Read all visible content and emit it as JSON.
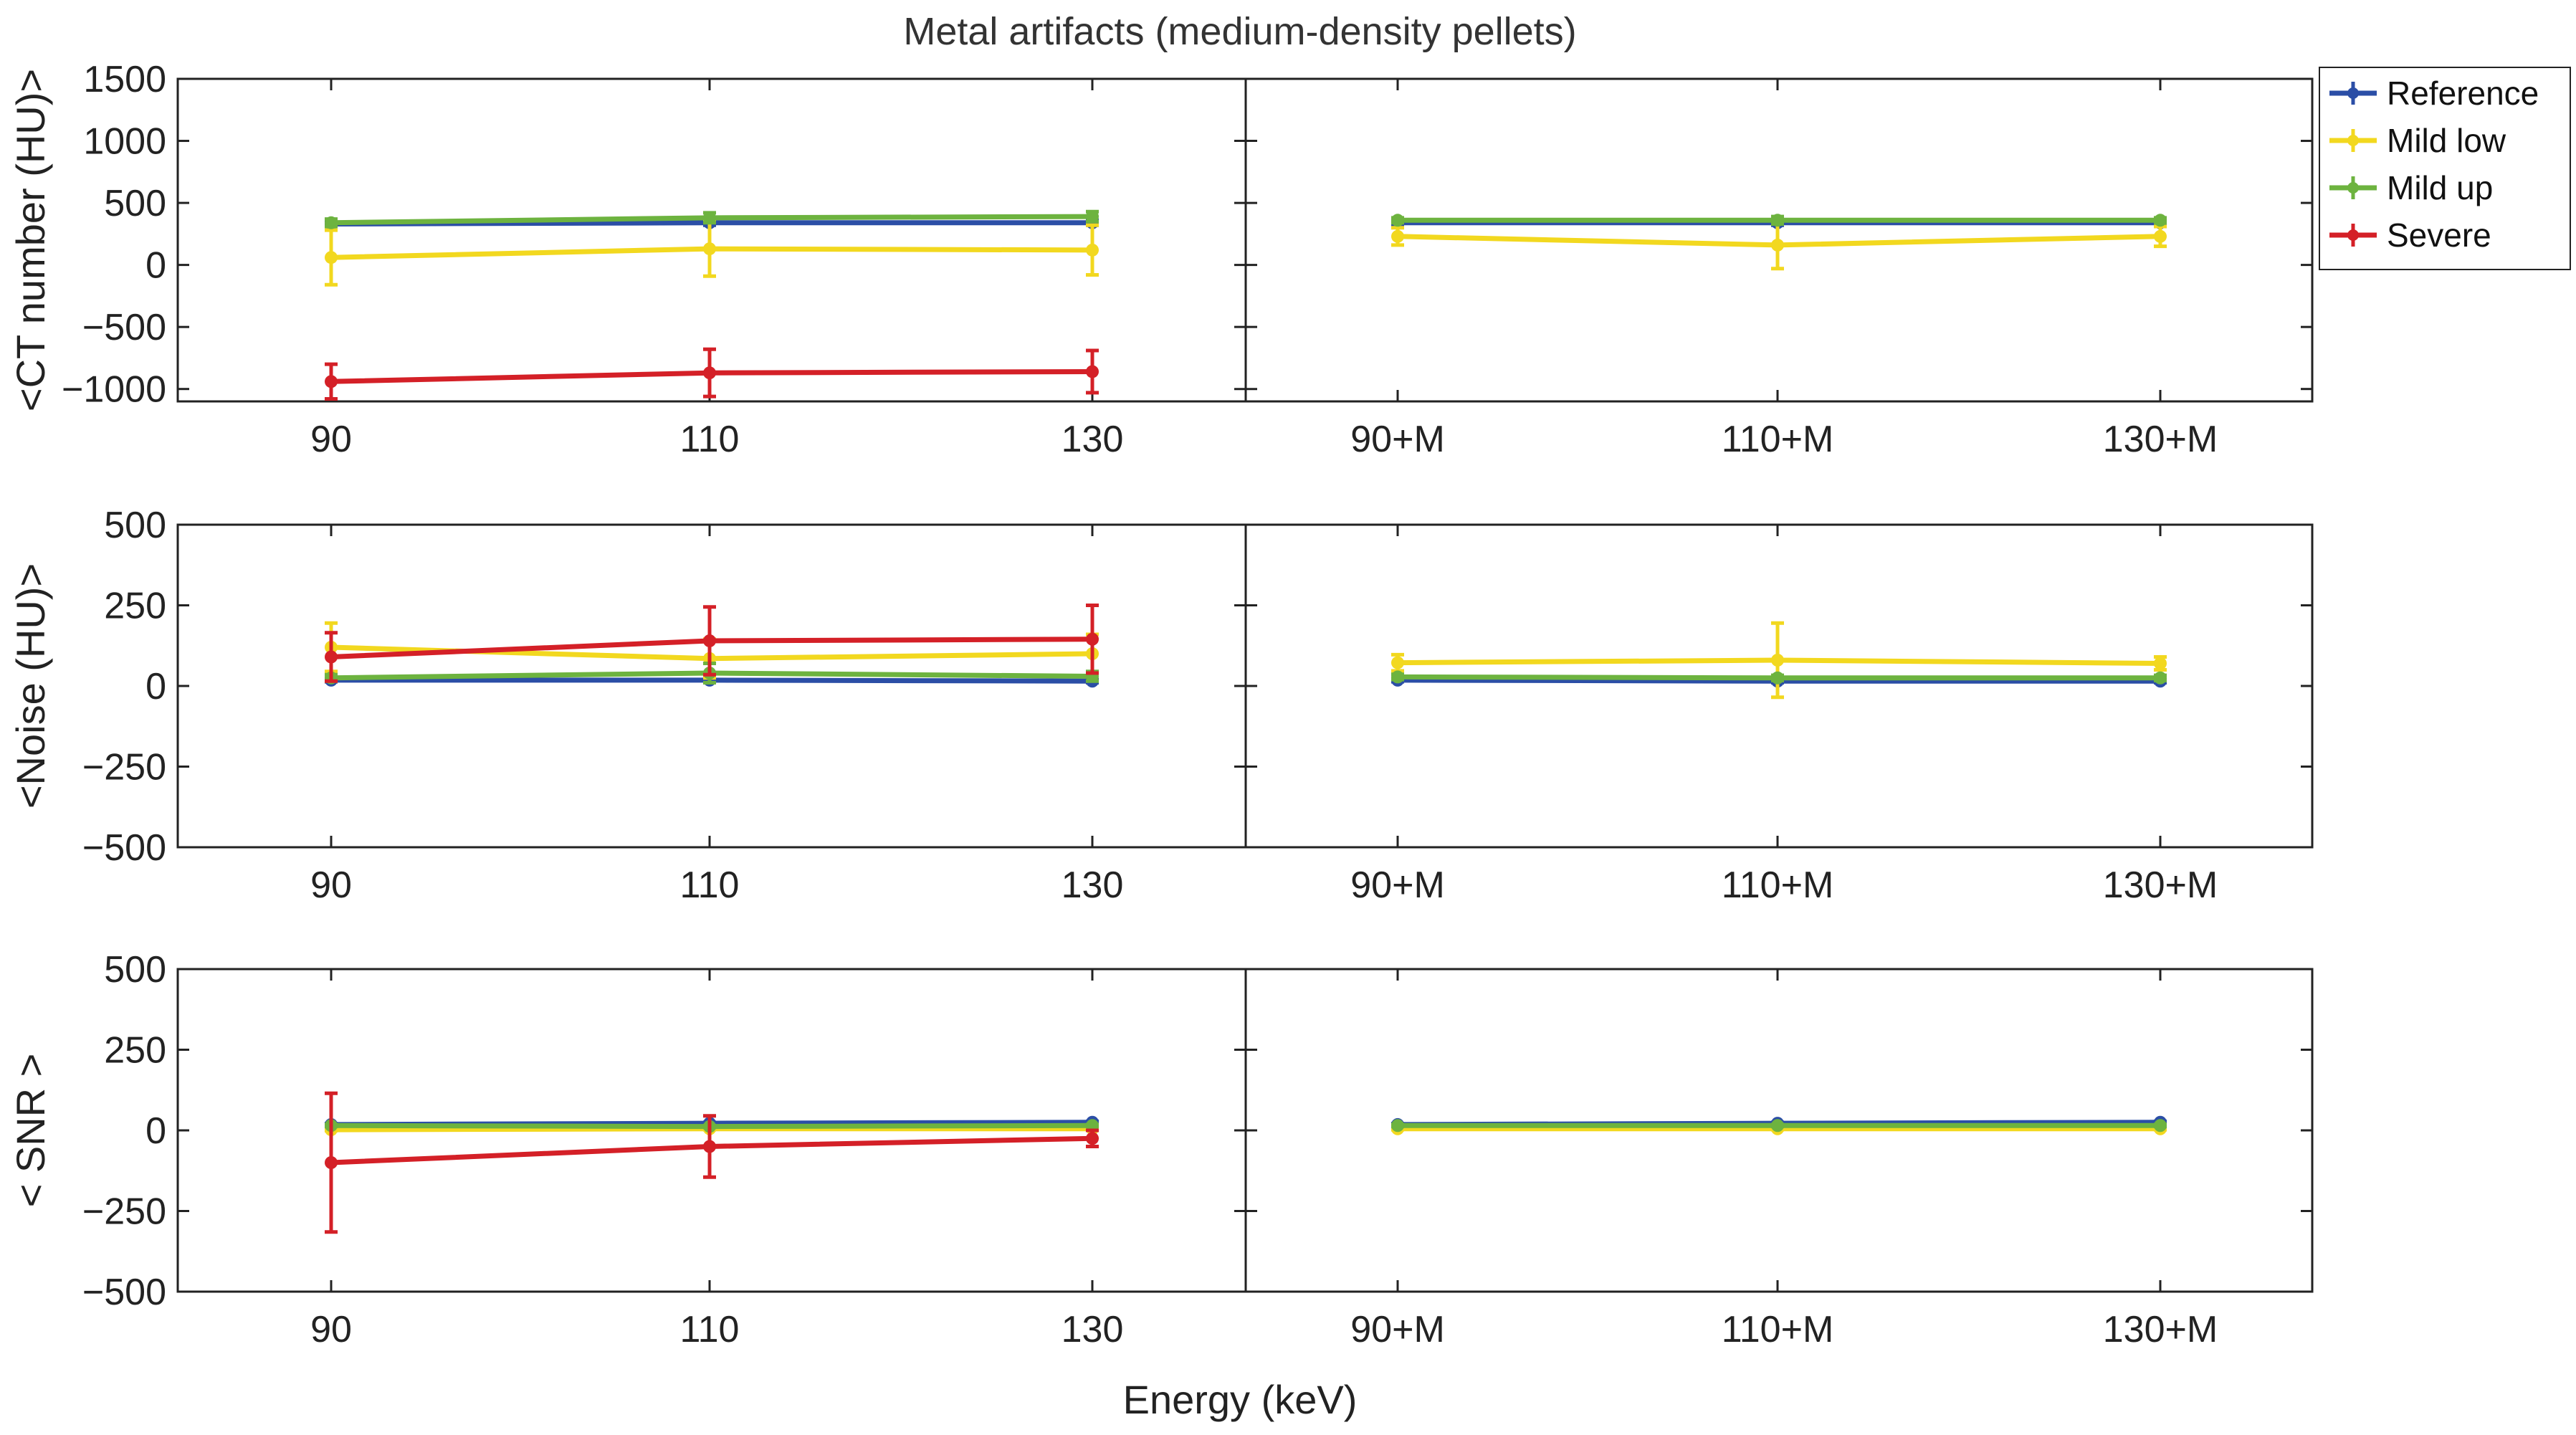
{
  "chart_data": {
    "type": "line",
    "title": "Metal artifacts (medium-density pellets)",
    "xlabel": "Energy (keV)",
    "legend_position": "right",
    "series_styles": [
      {
        "name": "Reference",
        "color": "#2b4ea6"
      },
      {
        "name": "Mild low",
        "color": "#f2d81f"
      },
      {
        "name": "Mild up",
        "color": "#6db33f"
      },
      {
        "name": "Severe",
        "color": "#d42027"
      }
    ],
    "panels": [
      {
        "ylabel": "<CT number (HU)>",
        "ylim": [
          -1100,
          1500
        ],
        "yticks": [
          1500,
          1000,
          500,
          0,
          -500,
          -1000
        ],
        "left": {
          "categories": [
            "90",
            "110",
            "130"
          ],
          "series": [
            {
              "name": "Reference",
              "values": [
                330,
                340,
                340
              ],
              "errors": [
                20,
                20,
                20
              ]
            },
            {
              "name": "Mild low",
              "values": [
                60,
                130,
                120
              ],
              "errors": [
                220,
                220,
                200
              ]
            },
            {
              "name": "Mild up",
              "values": [
                340,
                380,
                390
              ],
              "errors": [
                30,
                40,
                40
              ]
            },
            {
              "name": "Severe",
              "values": [
                -940,
                -870,
                -860
              ],
              "errors": [
                140,
                190,
                170
              ]
            }
          ]
        },
        "right": {
          "categories": [
            "90+M",
            "110+M",
            "130+M"
          ],
          "series": [
            {
              "name": "Reference",
              "values": [
                340,
                340,
                340
              ],
              "errors": [
                20,
                20,
                20
              ]
            },
            {
              "name": "Mild low",
              "values": [
                230,
                160,
                230
              ],
              "errors": [
                70,
                190,
                80
              ]
            },
            {
              "name": "Mild up",
              "values": [
                360,
                360,
                360
              ],
              "errors": [
                20,
                30,
                20
              ]
            }
          ]
        }
      },
      {
        "ylabel": "<Noise (HU)>",
        "ylim": [
          -500,
          500
        ],
        "yticks": [
          500,
          250,
          0,
          -250,
          -500
        ],
        "left": {
          "categories": [
            "90",
            "110",
            "130"
          ],
          "series": [
            {
              "name": "Reference",
              "values": [
                18,
                18,
                15
              ],
              "errors": [
                5,
                5,
                5
              ]
            },
            {
              "name": "Mild low",
              "values": [
                120,
                85,
                100
              ],
              "errors": [
                75,
                60,
                60
              ]
            },
            {
              "name": "Mild up",
              "values": [
                25,
                40,
                30
              ],
              "errors": [
                10,
                30,
                15
              ]
            },
            {
              "name": "Severe",
              "values": [
                90,
                140,
                145
              ],
              "errors": [
                75,
                105,
                105
              ]
            }
          ]
        },
        "right": {
          "categories": [
            "90+M",
            "110+M",
            "130+M"
          ],
          "series": [
            {
              "name": "Reference",
              "values": [
                18,
                15,
                15
              ],
              "errors": [
                5,
                5,
                5
              ]
            },
            {
              "name": "Mild low",
              "values": [
                72,
                80,
                70
              ],
              "errors": [
                25,
                115,
                20
              ]
            },
            {
              "name": "Mild up",
              "values": [
                28,
                25,
                25
              ],
              "errors": [
                8,
                8,
                8
              ]
            }
          ]
        }
      },
      {
        "ylabel": "< SNR >",
        "ylim": [
          -500,
          500
        ],
        "yticks": [
          500,
          250,
          0,
          -250,
          -500
        ],
        "left": {
          "categories": [
            "90",
            "110",
            "130"
          ],
          "series": [
            {
              "name": "Reference",
              "values": [
                18,
                22,
                25
              ],
              "errors": [
                3,
                3,
                3
              ]
            },
            {
              "name": "Mild low",
              "values": [
                2,
                5,
                5
              ],
              "errors": [
                3,
                3,
                3
              ]
            },
            {
              "name": "Mild up",
              "values": [
                15,
                12,
                15
              ],
              "errors": [
                3,
                3,
                3
              ]
            },
            {
              "name": "Severe",
              "values": [
                -100,
                -50,
                -25
              ],
              "errors": [
                215,
                95,
                25
              ]
            }
          ]
        },
        "right": {
          "categories": [
            "90+M",
            "110+M",
            "130+M"
          ],
          "series": [
            {
              "name": "Reference",
              "values": [
                18,
                22,
                25
              ],
              "errors": [
                3,
                3,
                3
              ]
            },
            {
              "name": "Mild low",
              "values": [
                5,
                5,
                5
              ],
              "errors": [
                3,
                3,
                3
              ]
            },
            {
              "name": "Mild up",
              "values": [
                15,
                15,
                15
              ],
              "errors": [
                3,
                3,
                3
              ]
            }
          ]
        }
      }
    ]
  }
}
